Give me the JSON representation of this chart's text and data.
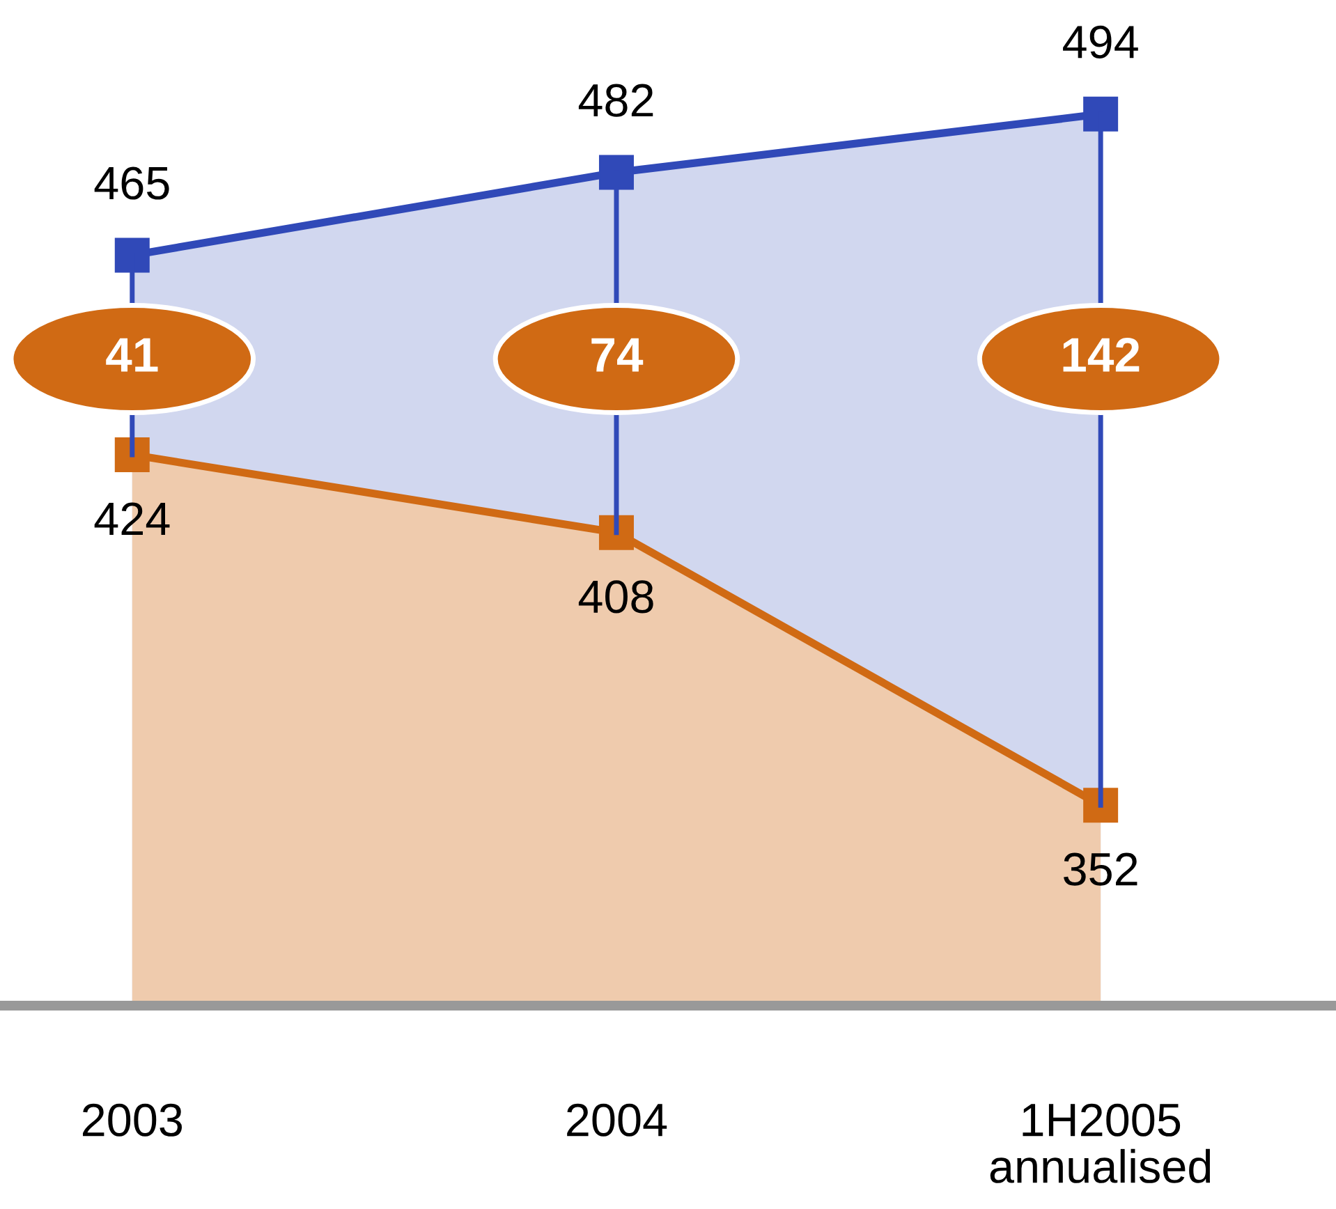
{
  "chart_data": {
    "type": "area",
    "categories": [
      "2003",
      "2004",
      "1H2005\nannualised"
    ],
    "series": [
      {
        "color": "#3049b8",
        "values": [
          465,
          482,
          494
        ]
      },
      {
        "color": "#d06a14",
        "values": [
          424,
          408,
          352
        ]
      }
    ],
    "annotations": [
      "41",
      "74",
      "142"
    ],
    "marker": "square",
    "data_labels": true,
    "grid": false,
    "legend": false
  }
}
